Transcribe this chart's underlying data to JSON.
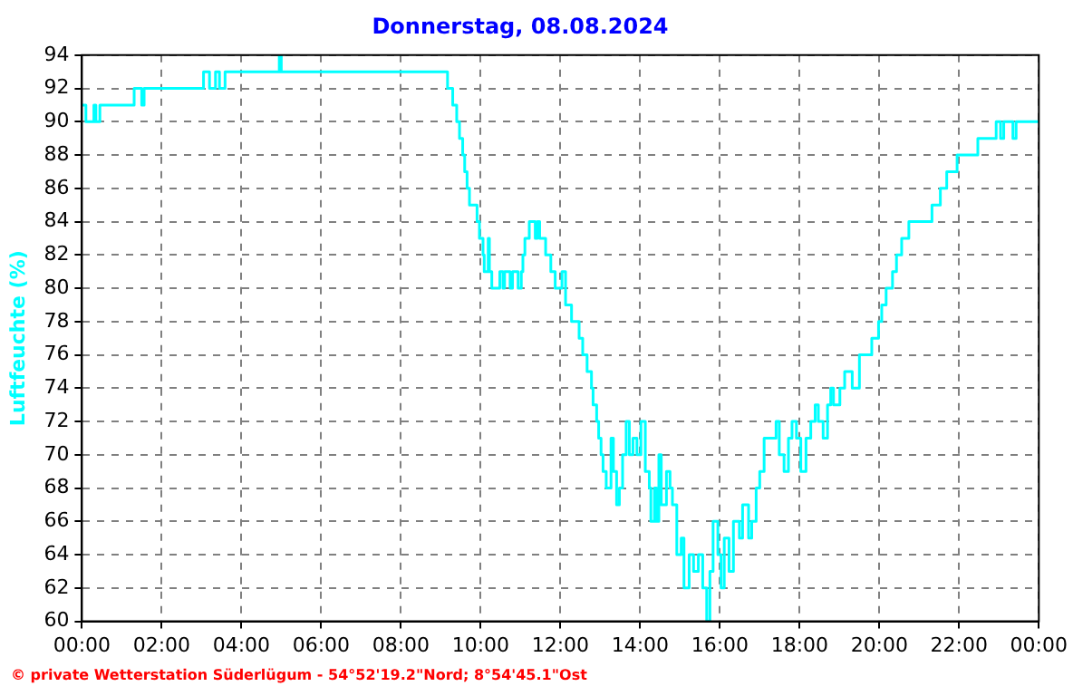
{
  "chart_data": {
    "type": "step",
    "title": "Donnerstag, 08.08.2024",
    "ylabel": "Luftfeuchte (%)",
    "annotations": [
      "© private Wetterstation Süderlügum  -  54°52'19.2\"Nord; 8°54'45.1\"Ost"
    ],
    "x": [
      0,
      0.1,
      0.3,
      0.35,
      0.45,
      1.31,
      1.5,
      1.56,
      3.05,
      3.2,
      3.35,
      3.45,
      3.59,
      4.95,
      5.0,
      9.17,
      9.3,
      9.4,
      9.47,
      9.55,
      9.6,
      9.66,
      9.72,
      9.91,
      9.97,
      10.06,
      10.09,
      10.19,
      10.22,
      10.28,
      10.48,
      10.56,
      10.6,
      10.74,
      10.8,
      10.94,
      11.02,
      11.06,
      11.11,
      11.22,
      11.37,
      11.42,
      11.48,
      11.63,
      11.76,
      11.87,
      12.04,
      12.13,
      12.28,
      12.47,
      12.56,
      12.67,
      12.78,
      12.82,
      12.91,
      12.96,
      13.02,
      13.07,
      13.15,
      13.27,
      13.33,
      13.41,
      13.48,
      13.56,
      13.65,
      13.73,
      13.82,
      13.92,
      14.02,
      14.13,
      14.23,
      14.27,
      14.36,
      14.41,
      14.47,
      14.53,
      14.66,
      14.75,
      14.81,
      14.92,
      15.03,
      15.1,
      15.23,
      15.34,
      15.46,
      15.57,
      15.67,
      15.75,
      15.83,
      15.95,
      16.03,
      16.11,
      16.23,
      16.34,
      16.49,
      16.57,
      16.72,
      16.8,
      16.91,
      17.0,
      17.11,
      17.26,
      17.41,
      17.49,
      17.61,
      17.72,
      17.81,
      17.92,
      18.03,
      18.16,
      18.28,
      18.39,
      18.47,
      18.59,
      18.7,
      18.78,
      18.85,
      19.01,
      19.13,
      19.32,
      19.5,
      19.81,
      19.98,
      20.06,
      20.17,
      20.33,
      20.43,
      20.56,
      20.74,
      21.32,
      21.53,
      21.69,
      21.95,
      22.47,
      22.93,
      23.04,
      23.12,
      23.35,
      23.43,
      24
    ],
    "series": [
      {
        "color": "#00ffff",
        "values": [
          91,
          90,
          91,
          90,
          91,
          92,
          91,
          92,
          93,
          92,
          93,
          92,
          93,
          94,
          93,
          92,
          91,
          90,
          89,
          88,
          87,
          86,
          85,
          84,
          83,
          82,
          81,
          83,
          81,
          80,
          81,
          80,
          81,
          80,
          81,
          80,
          81,
          82,
          83,
          84,
          83,
          84,
          83,
          82,
          81,
          80,
          81,
          79,
          78,
          77,
          76,
          75,
          74,
          73,
          72,
          71,
          70,
          69,
          68,
          71,
          69,
          67,
          68,
          70,
          72,
          70,
          71,
          70,
          72,
          69,
          68,
          66,
          68,
          66,
          70,
          67,
          69,
          68,
          67,
          64,
          65,
          62,
          64,
          63,
          64,
          62,
          60,
          63,
          66,
          64,
          62,
          65,
          63,
          66,
          65,
          67,
          65,
          66,
          68,
          69,
          71,
          71,
          72,
          70,
          69,
          71,
          72,
          71,
          69,
          71,
          72,
          73,
          72,
          71,
          73,
          74,
          73,
          74,
          75,
          74,
          76,
          77,
          78,
          79,
          80,
          81,
          82,
          83,
          84,
          85,
          86,
          87,
          88,
          89,
          90,
          89,
          90,
          89,
          90,
          90
        ]
      }
    ],
    "xlim": [
      0,
      24
    ],
    "xticks": [
      {
        "value": 0,
        "label": "00:00"
      },
      {
        "value": 2,
        "label": "02:00"
      },
      {
        "value": 4,
        "label": "04:00"
      },
      {
        "value": 6,
        "label": "06:00"
      },
      {
        "value": 8,
        "label": "08:00"
      },
      {
        "value": 10,
        "label": "10:00"
      },
      {
        "value": 12,
        "label": "12:00"
      },
      {
        "value": 14,
        "label": "14:00"
      },
      {
        "value": 16,
        "label": "16:00"
      },
      {
        "value": 18,
        "label": "18:00"
      },
      {
        "value": 20,
        "label": "20:00"
      },
      {
        "value": 22,
        "label": "22:00"
      },
      {
        "value": 24,
        "label": "00:00"
      }
    ],
    "ylim": [
      60,
      94
    ],
    "yticks": [
      60,
      62,
      64,
      66,
      68,
      70,
      72,
      74,
      76,
      78,
      80,
      82,
      84,
      86,
      88,
      90,
      92,
      94
    ],
    "grid": true,
    "legend": false,
    "marker": "none",
    "line_style": "solid"
  }
}
